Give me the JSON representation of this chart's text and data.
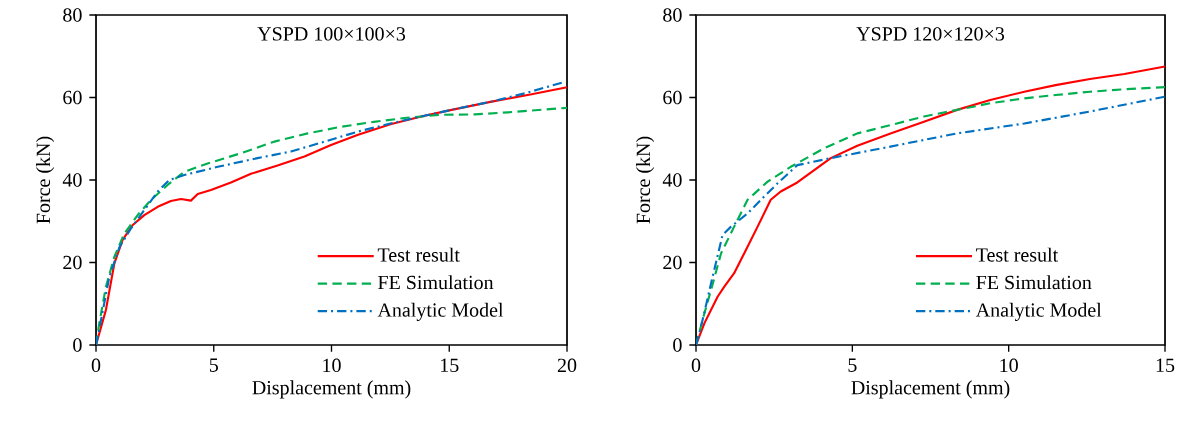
{
  "chart_data": [
    {
      "type": "line",
      "title": "YSPD 100×100×3",
      "xlabel": "Displacement (mm)",
      "ylabel": "Force (kN)",
      "xlim": [
        0,
        20
      ],
      "ylim": [
        0,
        80
      ],
      "xticks": [
        0,
        5,
        10,
        15,
        20
      ],
      "yticks": [
        0,
        20,
        40,
        60,
        80
      ],
      "grid": false,
      "legend": "bottom right",
      "series": [
        {
          "name": "Test result",
          "color": "#ff0000",
          "line_style": "solid",
          "x": [
            0,
            0.42,
            0.78,
            1.13,
            1.56,
            2.05,
            2.62,
            3.18,
            3.61,
            4.03,
            4.32,
            4.88,
            5.73,
            6.58,
            7.71,
            8.85,
            9.98,
            11.1,
            12.5,
            13.9,
            15.1,
            16.8,
            18.5,
            20
          ],
          "values": [
            0,
            8.5,
            19.8,
            25.5,
            29.1,
            31.5,
            33.5,
            34.9,
            35.4,
            35.0,
            36.6,
            37.6,
            39.4,
            41.5,
            43.5,
            45.7,
            48.5,
            50.9,
            53.5,
            55.5,
            57.0,
            59.0,
            60.8,
            62.5
          ]
        },
        {
          "name": "FE Simulation",
          "color": "#00b050",
          "line_style": "dashed",
          "x": [
            0,
            0.14,
            0.42,
            0.78,
            1.2,
            1.77,
            2.34,
            3.04,
            3.75,
            4.74,
            6.16,
            7.57,
            8.99,
            10.4,
            11.8,
            13.2,
            14.6,
            16.1,
            17.5,
            20
          ],
          "values": [
            0,
            5.3,
            14.1,
            21.4,
            27,
            31.5,
            35.2,
            38.8,
            42,
            44,
            46.5,
            49.3,
            51.3,
            52.9,
            54.1,
            55.1,
            55.8,
            55.9,
            56.4,
            57.5
          ]
        },
        {
          "name": "Analytic Model",
          "color": "#0070c0",
          "line_style": "dashdot",
          "x": [
            0,
            0.21,
            0.57,
            1.0,
            1.49,
            2.05,
            2.62,
            3.11,
            3.75,
            5.17,
            6.86,
            8.28,
            9.7,
            11.1,
            12.5,
            13.9,
            15.4,
            16.8,
            18.2,
            19.9
          ],
          "values": [
            0,
            6,
            16.6,
            23.8,
            28.3,
            32.7,
            37.2,
            40,
            41.2,
            43.2,
            45.3,
            46.9,
            49.3,
            51.7,
            53.7,
            55.5,
            57.4,
            59,
            61,
            63.8
          ]
        }
      ]
    },
    {
      "type": "line",
      "title": "YSPD 120×120×3",
      "xlabel": "Displacement (mm)",
      "ylabel": "Force (kN)",
      "xlim": [
        0,
        15
      ],
      "ylim": [
        0,
        80
      ],
      "xticks": [
        0,
        5,
        10,
        15
      ],
      "yticks": [
        0,
        20,
        40,
        60,
        80
      ],
      "grid": false,
      "legend": "bottom right",
      "series": [
        {
          "name": "Test result",
          "color": "#ff0000",
          "line_style": "solid",
          "x": [
            0,
            0.27,
            0.69,
            0.9,
            1.22,
            1.54,
            1.97,
            2.39,
            2.71,
            3.24,
            3.78,
            4.31,
            5.16,
            6.22,
            7.29,
            8.35,
            9.41,
            10.5,
            11.5,
            12.6,
            13.7,
            15
          ],
          "values": [
            0,
            5.3,
            11.7,
            14.1,
            17.4,
            22.2,
            28.7,
            35.2,
            37.2,
            39.4,
            42.4,
            45.3,
            48.3,
            51.3,
            54.1,
            57,
            59.4,
            61.4,
            63,
            64.5,
            65.7,
            67.5
          ]
        },
        {
          "name": "FE Simulation",
          "color": "#00b050",
          "line_style": "dashed",
          "x": [
            0,
            0.21,
            0.48,
            0.8,
            1.22,
            1.65,
            2.29,
            3.03,
            4.1,
            5.16,
            6.22,
            7.29,
            8.35,
            9.41,
            10.5,
            11.5,
            12.6,
            13.7,
            15
          ],
          "values": [
            0,
            6.1,
            13.3,
            22.2,
            28.7,
            35.2,
            39.6,
            43.2,
            47.7,
            51.3,
            53.3,
            55.4,
            57,
            58.6,
            59.8,
            60.6,
            61.4,
            62,
            62.5
          ]
        },
        {
          "name": "Analytic Model",
          "color": "#0070c0",
          "line_style": "dashdot",
          "x": [
            0,
            0.16,
            0.48,
            0.85,
            1.12,
            1.65,
            2.18,
            2.61,
            3.24,
            4.31,
            6.22,
            8.35,
            10.5,
            12.6,
            15
          ],
          "values": [
            0,
            4.4,
            14.9,
            26.7,
            28.7,
            31.9,
            36,
            39.2,
            43.6,
            45.3,
            48.1,
            51.3,
            53.7,
            56.6,
            60.2
          ]
        }
      ]
    }
  ]
}
